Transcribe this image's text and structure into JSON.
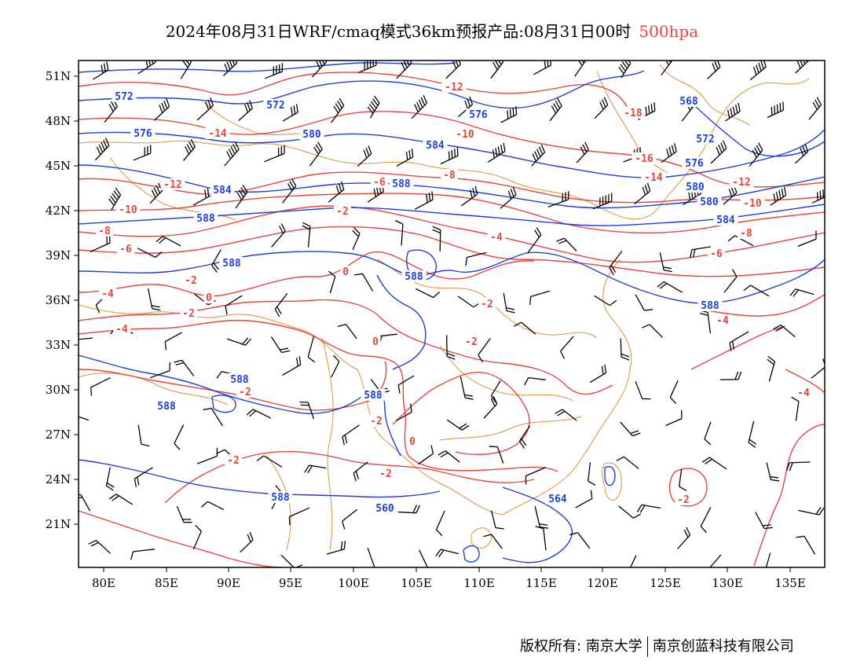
{
  "header": {
    "title_main": "2024年08月31日WRF/cmaq模式36km预报产品:08月31日00时",
    "title_level": "500hpa"
  },
  "lat_labels": [
    "51N",
    "48N",
    "45N",
    "42N",
    "39N",
    "36N",
    "33N",
    "30N",
    "27N",
    "24N",
    "21N"
  ],
  "lon_labels": [
    "80E",
    "85E",
    "90E",
    "95E",
    "100E",
    "105E",
    "110E",
    "115E",
    "120E",
    "125E",
    "130E",
    "135E"
  ],
  "height_labels": [
    "572",
    "572",
    "576",
    "576",
    "580",
    "584",
    "584",
    "588",
    "588",
    "588",
    "588",
    "588",
    "588",
    "588",
    "588",
    "560",
    "564",
    "568",
    "572",
    "576",
    "580",
    "580",
    "584",
    "588"
  ],
  "temp_labels": [
    "-14",
    "-12",
    "-10",
    "-8",
    "-6",
    "-4",
    "-2",
    "-4",
    "-2",
    "0",
    "-2",
    "-2",
    "-12",
    "-10",
    "-8",
    "-6",
    "-4",
    "-2",
    "0",
    "0",
    "-2",
    "-2",
    "0",
    "-2",
    "-2",
    "-18",
    "-16",
    "-14",
    "-12",
    "-10",
    "-8",
    "-6",
    "-4",
    "-4",
    "-2"
  ],
  "colors": {
    "height": "#1f3fd8",
    "temperature": "#e8453c",
    "borders": "#e0902e",
    "wind": "#000000"
  },
  "footer": {
    "copyright": "版权所有: 南京大学",
    "company": "南京创蓝科技有限公司"
  }
}
